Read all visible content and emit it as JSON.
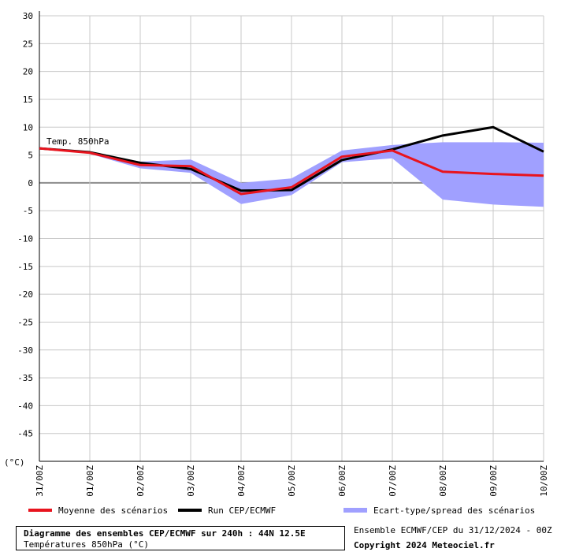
{
  "chart_data": {
    "type": "line",
    "unit_label": "(°C)",
    "annotation": "Temp. 850hPa",
    "x": [
      "31/00Z",
      "01/00Z",
      "02/00Z",
      "03/00Z",
      "04/00Z",
      "05/00Z",
      "06/00Z",
      "07/00Z",
      "08/00Z",
      "09/00Z",
      "10/00Z"
    ],
    "ylim": [
      -50,
      30
    ],
    "yticks": [
      30,
      25,
      20,
      15,
      10,
      5,
      0,
      -5,
      -10,
      -15,
      -20,
      -25,
      -30,
      -35,
      -40,
      -45
    ],
    "grid": true,
    "series": [
      {
        "name": "Moyenne des scénarios",
        "color": "#e8141e",
        "values": [
          6.2,
          5.4,
          3.2,
          3.0,
          -2.0,
          -0.8,
          4.7,
          5.8,
          2.0,
          1.6,
          1.3
        ]
      },
      {
        "name": "Run CEP/ECMWF",
        "color": "#000000",
        "values": [
          6.2,
          5.5,
          3.6,
          2.5,
          -1.4,
          -1.3,
          4.1,
          6.0,
          8.5,
          10.0,
          5.6
        ]
      }
    ],
    "spread": {
      "name": "Ecart-type/spread des scénarios",
      "color": "#a0a0ff",
      "upper": [
        6.2,
        5.6,
        3.8,
        4.2,
        0.0,
        0.8,
        5.8,
        6.8,
        7.3,
        7.3,
        7.2
      ],
      "lower": [
        6.2,
        5.2,
        2.6,
        1.8,
        -3.8,
        -2.2,
        3.7,
        4.4,
        -3.0,
        -3.9,
        -4.3
      ]
    }
  },
  "footer": {
    "title": "Diagramme des ensembles CEP/ECMWF sur 240h : 44N 12.5E",
    "subtitle": "Températures 850hPa (°C)",
    "run_info": "Ensemble ECMWF/CEP du 31/12/2024 - 00Z",
    "copyright": "Copyright 2024 Meteociel.fr"
  }
}
